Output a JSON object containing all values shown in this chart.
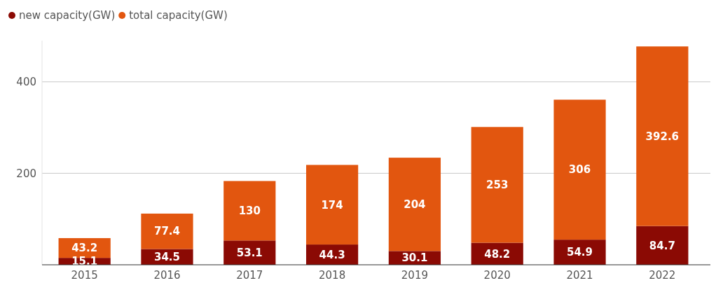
{
  "chart_data": {
    "type": "bar",
    "stacked": true,
    "categories": [
      "2015",
      "2016",
      "2017",
      "2018",
      "2019",
      "2020",
      "2021",
      "2022"
    ],
    "series": [
      {
        "name": "new capacity(GW)",
        "color": "#8b0a04",
        "values": [
          15.1,
          34.5,
          53.1,
          44.3,
          30.1,
          48.2,
          54.9,
          84.7
        ]
      },
      {
        "name": "total capacity(GW)",
        "color": "#e2560f",
        "values": [
          43.2,
          77.4,
          130,
          174,
          204,
          253,
          306,
          392.6
        ]
      }
    ],
    "ylim": [
      0,
      490
    ],
    "yticks": [
      200,
      400
    ],
    "grid": "y",
    "legend": "top left",
    "data_labels": true
  }
}
